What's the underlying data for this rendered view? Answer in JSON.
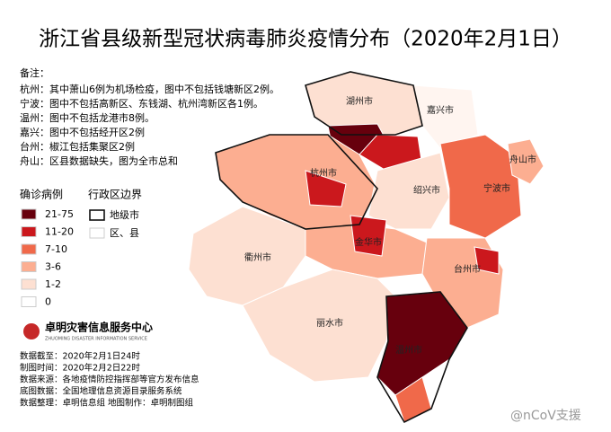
{
  "header": {
    "title": "浙江省县级新型冠状病毒肺炎疫情分布（2020年2月1日）"
  },
  "notes": {
    "heading": "备注：",
    "lines": [
      "杭州：其中萧山6例为机场检疫，图中不包括钱塘新区2例。",
      "宁波：图中不包括高新区、东钱湖、杭州湾新区各1例。",
      "温州：图中不包括龙港市8例。",
      "嘉兴：图中不包括经开区2例",
      "台州：椒江包括集聚区2例",
      "舟山：区县数据缺失，图为全市总和"
    ]
  },
  "legend": {
    "title": "确诊病例",
    "items": [
      {
        "label": "21-75",
        "color": "#67000d"
      },
      {
        "label": "11-20",
        "color": "#cb181d"
      },
      {
        "label": "7-10",
        "color": "#f0694a"
      },
      {
        "label": "3-6",
        "color": "#fcae91"
      },
      {
        "label": "1-2",
        "color": "#fde0d2"
      },
      {
        "label": "0",
        "color": "#ffffff"
      }
    ]
  },
  "boundary": {
    "title": "行政区边界",
    "items": [
      "地级市",
      "区、县"
    ]
  },
  "logo": {
    "name": "卓明灾害信息服务中心",
    "sub": "ZHUOMING DISASTER INFORMATION SERVICE"
  },
  "footer": [
    "数据截至：2020年2月1日24时",
    "制图时间：2020年2月2日22时",
    "数据来源：各地疫情防控指挥部等官方发布信息",
    "底图数据：全国地理信息资源目录服务系统",
    "数据整理：卓明信息组  地图制作：卓明制图组"
  ],
  "cities": [
    "湖州市",
    "嘉兴市",
    "杭州市",
    "绍兴市",
    "宁波市",
    "舟山市",
    "金华市",
    "衢州市",
    "台州市",
    "丽水市",
    "温州市"
  ],
  "watermark": "@nCoV支援"
}
